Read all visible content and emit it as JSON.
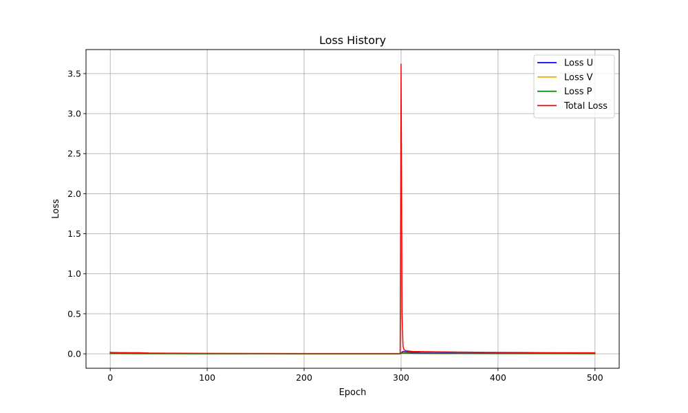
{
  "chart_data": {
    "type": "line",
    "title": "Loss History",
    "xlabel": "Epoch",
    "ylabel": "Loss",
    "xlim": [
      -25,
      525
    ],
    "ylim": [
      -0.18,
      3.8
    ],
    "xticks": [
      0,
      100,
      200,
      300,
      400,
      500
    ],
    "yticks": [
      0.0,
      0.5,
      1.0,
      1.5,
      2.0,
      2.5,
      3.0,
      3.5
    ],
    "ytick_labels": [
      "0.0",
      "0.5",
      "1.0",
      "1.5",
      "2.0",
      "2.5",
      "3.0",
      "3.5"
    ],
    "grid": true,
    "legend_position": "top-right",
    "series": [
      {
        "name": "Loss U",
        "color": "#0000ff",
        "x": [
          0,
          5,
          15,
          30,
          40,
          60,
          100,
          150,
          200,
          250,
          299,
          300,
          301,
          302,
          305,
          310,
          320,
          340,
          360,
          400,
          450,
          500
        ],
        "y": [
          0.012,
          0.01,
          0.008,
          0.006,
          0.005,
          0.004,
          0.003,
          0.003,
          0.002,
          0.002,
          0.002,
          0.01,
          0.02,
          0.03,
          0.025,
          0.02,
          0.015,
          0.012,
          0.01,
          0.008,
          0.006,
          0.005
        ]
      },
      {
        "name": "Loss V",
        "color": "#ffa500",
        "x": [
          0,
          5,
          15,
          30,
          40,
          60,
          100,
          150,
          200,
          250,
          299,
          300,
          301,
          302,
          305,
          310,
          320,
          340,
          360,
          400,
          450,
          500
        ],
        "y": [
          0.006,
          0.005,
          0.004,
          0.003,
          0.003,
          0.002,
          0.002,
          0.002,
          0.001,
          0.001,
          0.001,
          0.005,
          0.01,
          0.012,
          0.01,
          0.008,
          0.007,
          0.006,
          0.005,
          0.004,
          0.003,
          0.003
        ]
      },
      {
        "name": "Loss P",
        "color": "#008000",
        "x": [
          0,
          5,
          15,
          30,
          40,
          60,
          100,
          150,
          200,
          250,
          299,
          300,
          301,
          302,
          305,
          310,
          320,
          340,
          360,
          400,
          450,
          500
        ],
        "y": [
          0.004,
          0.003,
          0.003,
          0.002,
          0.002,
          0.002,
          0.001,
          0.001,
          0.001,
          0.001,
          0.001,
          0.004,
          0.008,
          0.01,
          0.008,
          0.006,
          0.005,
          0.004,
          0.004,
          0.003,
          0.003,
          0.002
        ]
      },
      {
        "name": "Total Loss",
        "color": "#ff0000",
        "x": [
          0,
          2,
          5,
          10,
          15,
          20,
          25,
          30,
          35,
          40,
          60,
          100,
          150,
          200,
          250,
          299,
          299.5,
          300,
          300.5,
          301,
          302,
          303,
          305,
          308,
          312,
          320,
          340,
          360,
          380,
          400,
          450,
          500
        ],
        "y": [
          0.02,
          0.018,
          0.017,
          0.016,
          0.016,
          0.015,
          0.015,
          0.014,
          0.012,
          0.01,
          0.008,
          0.006,
          0.005,
          0.004,
          0.004,
          0.004,
          1.5,
          3.62,
          2.2,
          0.5,
          0.1,
          0.05,
          0.04,
          0.035,
          0.03,
          0.028,
          0.025,
          0.022,
          0.02,
          0.018,
          0.015,
          0.013
        ]
      }
    ]
  }
}
